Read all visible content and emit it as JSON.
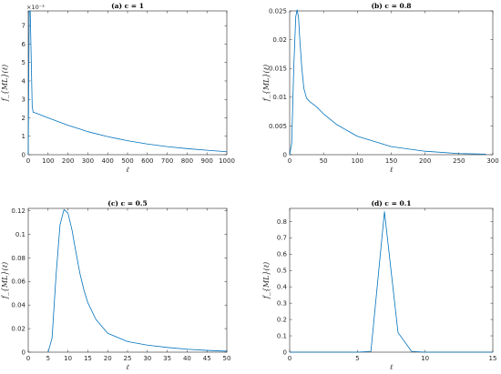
{
  "chart_data": [
    {
      "type": "line",
      "title": "(a) c = 1",
      "xlabel": "ℓ",
      "ylabel": "f_{ML}(ℓ)",
      "xlim": [
        0,
        1000
      ],
      "ylim": [
        0,
        7.8
      ],
      "y_exponent_label": "×10⁻³",
      "xticks": [
        0,
        100,
        200,
        300,
        400,
        500,
        600,
        700,
        800,
        900,
        1000
      ],
      "yticks": [
        0,
        1,
        2,
        3,
        4,
        5,
        6,
        7
      ],
      "series": [
        {
          "x": [
            0,
            5,
            10,
            20,
            25,
            40,
            100,
            200,
            300,
            400,
            500,
            600,
            700,
            800,
            900,
            1000
          ],
          "y": [
            0,
            7.8,
            7.8,
            2.6,
            2.3,
            2.25,
            2.0,
            1.6,
            1.25,
            0.98,
            0.76,
            0.58,
            0.44,
            0.33,
            0.24,
            0.16
          ]
        }
      ]
    },
    {
      "type": "line",
      "title": "(b) c = 0.8",
      "xlabel": "ℓ",
      "ylabel": "f_{ML}(ℓ)",
      "xlim": [
        0,
        300
      ],
      "ylim": [
        0,
        0.025
      ],
      "xticks": [
        0,
        50,
        100,
        150,
        200,
        250,
        300
      ],
      "yticks": [
        0,
        0.005,
        0.01,
        0.015,
        0.02,
        0.025
      ],
      "ytick_labels": [
        "0",
        "0.005",
        "0.01",
        "0.015",
        "0.02",
        "0.025"
      ],
      "series": [
        {
          "x": [
            0,
            3,
            6,
            9,
            11,
            13,
            15,
            18,
            21,
            25,
            30,
            40,
            50,
            70,
            100,
            150,
            200,
            250,
            290
          ],
          "y": [
            0,
            0.002,
            0.015,
            0.024,
            0.0252,
            0.024,
            0.02,
            0.015,
            0.0115,
            0.0098,
            0.0092,
            0.0083,
            0.0071,
            0.0052,
            0.0032,
            0.0014,
            0.0006,
            0.0002,
            0.0001
          ]
        }
      ]
    },
    {
      "type": "line",
      "title": "(c) c = 0.5",
      "xlabel": "ℓ",
      "ylabel": "f_{ML}(ℓ)",
      "xlim": [
        0,
        50
      ],
      "ylim": [
        0,
        0.122
      ],
      "xticks": [
        0,
        5,
        10,
        15,
        20,
        25,
        30,
        35,
        40,
        45,
        50
      ],
      "yticks": [
        0,
        0.02,
        0.04,
        0.06,
        0.08,
        0.1,
        0.12
      ],
      "ytick_labels": [
        "0",
        "0.02",
        "0.04",
        "0.06",
        "0.08",
        "0.1",
        "0.12"
      ],
      "series": [
        {
          "x": [
            5,
            6,
            7,
            8,
            9,
            10,
            11,
            12,
            13,
            14,
            15,
            17,
            20,
            25,
            30,
            35,
            40,
            45,
            50
          ],
          "y": [
            0,
            0.012,
            0.065,
            0.108,
            0.121,
            0.118,
            0.104,
            0.085,
            0.067,
            0.053,
            0.042,
            0.028,
            0.016,
            0.009,
            0.006,
            0.004,
            0.0025,
            0.0015,
            0.0008
          ]
        }
      ]
    },
    {
      "type": "line",
      "title": "(d) c = 0.1",
      "xlabel": "ℓ",
      "ylabel": "f_{ML}(ℓ)",
      "xlim": [
        0,
        15
      ],
      "ylim": [
        0,
        0.88
      ],
      "xticks": [
        0,
        5,
        10,
        15
      ],
      "yticks": [
        0,
        0.1,
        0.2,
        0.3,
        0.4,
        0.5,
        0.6,
        0.7,
        0.8
      ],
      "ytick_labels": [
        "0",
        "0.1",
        "0.2",
        "0.3",
        "0.4",
        "0.5",
        "0.6",
        "0.7",
        "0.8"
      ],
      "series": [
        {
          "x": [
            0,
            5,
            6,
            7,
            8,
            9,
            10,
            15
          ],
          "y": [
            0,
            0,
            0.005,
            0.86,
            0.12,
            0.005,
            0,
            0
          ]
        }
      ]
    }
  ]
}
